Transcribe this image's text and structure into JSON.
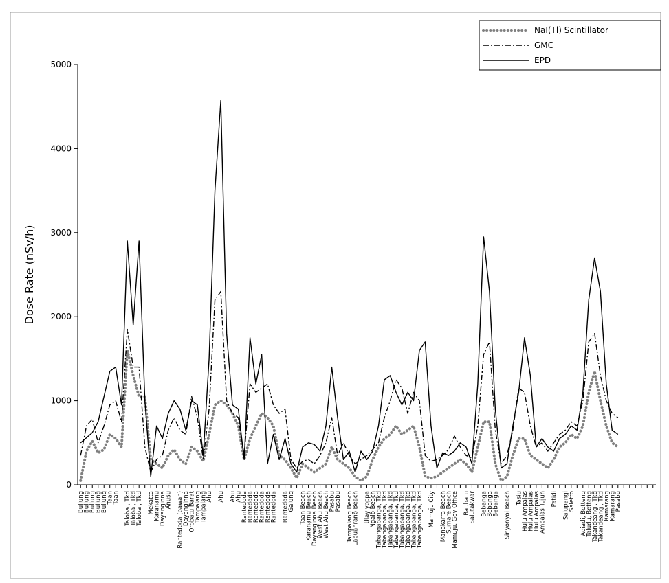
{
  "chart_data": {
    "type": "line",
    "y_label": "Dose Rate (nSv/h)",
    "ylim": [
      0,
      5000
    ],
    "yticks": [
      0,
      1000,
      2000,
      3000,
      4000,
      5000
    ],
    "legend": "upper right",
    "categories": [
      "Bullung",
      "Bullung",
      "Bullung",
      "Bullung",
      "Bullung",
      "Taan",
      "Taan",
      null,
      "Taloba , Tkd",
      "Taloba , Tkd",
      "Taloba , Tkd",
      null,
      "Mekatta",
      "Karanamu",
      "Dayanginna",
      "Anusu",
      null,
      "Rantedoda (bawah)",
      "Dayanginna",
      "Orobatu Barat",
      "Tampalang",
      "Tampalang",
      "Ahu",
      null,
      "Ahu",
      null,
      "Ahu",
      "Ahu",
      "Rantedoda",
      "Rantedoda",
      "Rantedoda",
      "Rantedoda",
      "Rantedoda",
      "Rantedoda",
      null,
      "Rantedoda",
      "Galung",
      null,
      "Taan Beach",
      "Karanamu Beach",
      "Dayanginna Beach",
      "West Ahu Beach",
      "West Ahu Beach",
      "Pasabu",
      "Pasabu",
      null,
      "Tampalang Beach",
      "Labuanrano Beach",
      null,
      "Ulaylyoppa",
      "Ngalo Beach",
      "Tabangabanga, Tkd",
      "Tabangabanga, Tkd",
      "Tabangabanga, Tkd",
      "Tabangabanga, Tkd",
      "Tabangabanga, Tkd",
      "Tabangabanga, Tkd",
      "Tabangabanga, Tkd",
      "Tabangabanga, Tkd",
      null,
      "Mamuju City",
      null,
      "Manakarra Beach",
      "Sumare Beach",
      "Mamuju, Gov Office",
      null,
      "Baubatu",
      "Salutakwar",
      null,
      "Bebanga",
      "Bebanga",
      "Bebanga",
      null,
      "Sinyonyoi Beach",
      null,
      "Tasiu",
      "Hulu Ampalas",
      "Hulu Ampalas",
      "Hulu Ampalas",
      "Ampalas Tujuh",
      null,
      "Patidi",
      null,
      "Salupangi",
      "Saletto",
      null,
      "Adiadi, Botteng",
      "Taludu, Botteng",
      "Takandeang , Tkd",
      "Takandeang , Tkd",
      "Kamarang",
      "Kamarang",
      "Pasabu",
      null,
      null,
      null,
      null,
      null,
      null
    ],
    "series": [
      {
        "name": "NaI(Tl) Scintillator",
        "color": "#808080",
        "style": "dotted",
        "values": [
          50,
          400,
          520,
          380,
          420,
          600,
          550,
          450,
          1600,
          1300,
          1050,
          1050,
          300,
          250,
          200,
          350,
          420,
          300,
          250,
          450,
          400,
          280,
          600,
          950,
          1000,
          950,
          850,
          700,
          300,
          550,
          700,
          850,
          800,
          700,
          350,
          300,
          200,
          80,
          250,
          200,
          150,
          200,
          250,
          450,
          300,
          250,
          200,
          100,
          50,
          100,
          300,
          450,
          550,
          600,
          700,
          600,
          650,
          700,
          450,
          100,
          80,
          100,
          150,
          200,
          250,
          300,
          250,
          150,
          450,
          750,
          750,
          250,
          50,
          100,
          350,
          550,
          550,
          350,
          300,
          250,
          200,
          300,
          450,
          500,
          600,
          550,
          700,
          1100,
          1350,
          1000,
          700,
          500,
          450,
          null,
          null,
          null,
          null,
          null,
          null
        ]
      },
      {
        "name": "GMC",
        "color": "#000000",
        "style": "dashdot",
        "values": [
          350,
          700,
          780,
          500,
          700,
          950,
          1000,
          750,
          1850,
          1400,
          1400,
          450,
          150,
          300,
          350,
          650,
          800,
          650,
          600,
          1050,
          800,
          300,
          900,
          2200,
          2300,
          1000,
          850,
          800,
          350,
          1200,
          1100,
          1150,
          1200,
          950,
          850,
          900,
          300,
          200,
          280,
          300,
          250,
          350,
          500,
          800,
          350,
          500,
          350,
          250,
          300,
          350,
          420,
          500,
          800,
          1000,
          1250,
          1150,
          850,
          1100,
          1000,
          350,
          280,
          300,
          350,
          420,
          580,
          450,
          350,
          320,
          700,
          1550,
          1700,
          650,
          250,
          350,
          650,
          1150,
          1100,
          700,
          450,
          500,
          400,
          500,
          600,
          650,
          750,
          700,
          1000,
          1700,
          1800,
          1300,
          1000,
          850,
          800,
          null,
          null,
          null,
          null,
          null,
          null
        ]
      },
      {
        "name": "EPD",
        "color": "#000000",
        "style": "solid",
        "values": [
          500,
          560,
          620,
          750,
          1050,
          1350,
          1400,
          950,
          2900,
          1900,
          2900,
          1000,
          100,
          700,
          550,
          850,
          1000,
          900,
          650,
          1000,
          950,
          350,
          1500,
          3500,
          4570,
          1800,
          950,
          900,
          300,
          1750,
          1200,
          1550,
          250,
          600,
          300,
          550,
          250,
          150,
          450,
          500,
          480,
          400,
          700,
          1400,
          800,
          300,
          400,
          150,
          400,
          300,
          400,
          700,
          1250,
          1300,
          1100,
          950,
          1100,
          1000,
          1600,
          1700,
          700,
          200,
          380,
          350,
          400,
          500,
          450,
          250,
          1200,
          2950,
          2300,
          900,
          200,
          250,
          700,
          1100,
          1750,
          1300,
          450,
          550,
          450,
          400,
          550,
          600,
          700,
          650,
          1100,
          2200,
          2700,
          2300,
          1200,
          650,
          600,
          null,
          null,
          null,
          null,
          null,
          null
        ]
      }
    ]
  }
}
